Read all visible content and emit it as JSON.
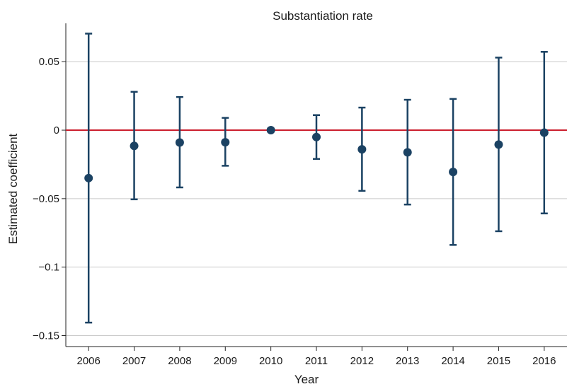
{
  "chart_data": {
    "type": "scatter",
    "title": "Substantiation rate",
    "xlabel": "Year",
    "ylabel": "Estimated coefficient",
    "x": [
      2006,
      2007,
      2008,
      2009,
      2010,
      2011,
      2012,
      2013,
      2014,
      2015,
      2016
    ],
    "y_tick_labels": [
      "0.05",
      "0",
      "−0.05",
      "−0.1",
      "−0.15"
    ],
    "y_tick_values": [
      0.05,
      0,
      -0.05,
      -0.1,
      -0.15
    ],
    "ylim": [
      -0.158,
      0.078
    ],
    "xlim": [
      2005.5,
      2016.5
    ],
    "grid": true,
    "reference_line": 0,
    "series": [
      {
        "estimate": [
          -0.035,
          -0.0115,
          -0.009,
          -0.0088,
          0.0,
          -0.005,
          -0.014,
          -0.0162,
          -0.0305,
          -0.0105,
          -0.0018
        ],
        "ci_upper": [
          0.0705,
          0.028,
          0.0242,
          0.009,
          0.0,
          0.011,
          0.0165,
          0.0222,
          0.0228,
          0.053,
          0.0572
        ],
        "ci_lower": [
          -0.1405,
          -0.0505,
          -0.0418,
          -0.026,
          0.0,
          -0.021,
          -0.0443,
          -0.0543,
          -0.0838,
          -0.0738,
          -0.0608
        ]
      }
    ],
    "colors": {
      "marker": "#1b4263",
      "reference_line": "#cc1f2e",
      "grid": "#c9c9c9",
      "axis": "#222222"
    }
  }
}
